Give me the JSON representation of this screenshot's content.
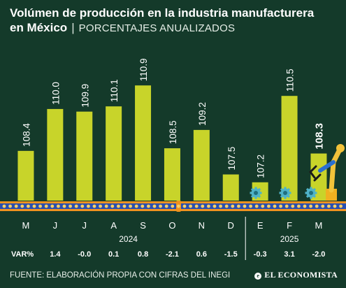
{
  "header": {
    "title_line1": "Volúmen de producción en la industria manufacturera",
    "title_line2": "en México",
    "separator": "|",
    "subtitle": "PORCENTAJES ANUALIZADOS"
  },
  "chart_data": {
    "type": "bar",
    "categories": [
      "M",
      "J",
      "J",
      "A",
      "S",
      "O",
      "N",
      "D",
      "E",
      "F",
      "M"
    ],
    "values": [
      108.4,
      110.0,
      109.9,
      110.1,
      110.9,
      108.5,
      109.2,
      107.5,
      107.2,
      110.5,
      108.3
    ],
    "value_labels": [
      "108.4",
      "110.0",
      "109.9",
      "110.1",
      "110.9",
      "108.5",
      "109.2",
      "107.5",
      "107.2",
      "110.5",
      "108.3"
    ],
    "ylim": [
      106.5,
      111.6
    ],
    "years": [
      {
        "label": "2024",
        "start": 0,
        "end": 7
      },
      {
        "label": "2025",
        "start": 8,
        "end": 10
      }
    ],
    "var_label": "VAR%",
    "var_values": [
      "1.4",
      "-0.0",
      "0.1",
      "0.8",
      "-2.1",
      "0.6",
      "-1.5",
      "-0.3",
      "3.1",
      "-2.0"
    ],
    "highlight_index": 10,
    "bar_color": "#c8d42a",
    "background": "#143a2a",
    "conveyor_color": "#f0931f",
    "grid": false
  },
  "footer": {
    "source": "FUENTE: ELABORACIÓN PROPIA CON CIFRAS DEL INEGI",
    "brand_mark": "e",
    "brand": "EL ECONOMISTA"
  }
}
